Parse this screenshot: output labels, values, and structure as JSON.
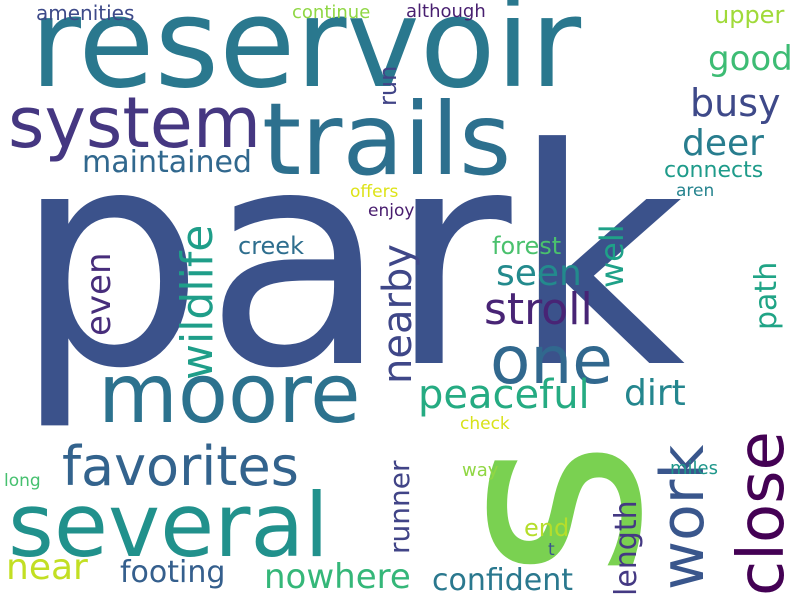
{
  "background": "#ffffff",
  "words": [
    {
      "text": "park",
      "color": "#3b528b",
      "vertical": false
    },
    {
      "text": "reservoir",
      "color": "#2a788e",
      "vertical": false
    },
    {
      "text": "s",
      "color": "#7ad151",
      "vertical": true
    },
    {
      "text": "trails",
      "color": "#2d708e",
      "vertical": false
    },
    {
      "text": "system",
      "color": "#453781",
      "vertical": false
    },
    {
      "text": "several",
      "color": "#21918c",
      "vertical": false
    },
    {
      "text": "moore",
      "color": "#2c728e",
      "vertical": false
    },
    {
      "text": "close",
      "color": "#440154",
      "vertical": true
    },
    {
      "text": "one",
      "color": "#31688e",
      "vertical": false
    },
    {
      "text": "favorites",
      "color": "#33638d",
      "vertical": false
    },
    {
      "text": "work",
      "color": "#39568c",
      "vertical": true
    },
    {
      "text": "wildlife",
      "color": "#1f9e89",
      "vertical": true
    },
    {
      "text": "stroll",
      "color": "#482475",
      "vertical": false
    },
    {
      "text": "peaceful",
      "color": "#25ab82",
      "vertical": false
    },
    {
      "text": "busy",
      "color": "#3e4989",
      "vertical": false
    },
    {
      "text": "deer",
      "color": "#287d8e",
      "vertical": false
    },
    {
      "text": "nowhere",
      "color": "#35b779",
      "vertical": false
    },
    {
      "text": "confident",
      "color": "#2a788e",
      "vertical": false
    },
    {
      "text": "seen",
      "color": "#238a8d",
      "vertical": false
    },
    {
      "text": "dirt",
      "color": "#24868e",
      "vertical": false
    },
    {
      "text": "maintained",
      "color": "#31688e",
      "vertical": false
    },
    {
      "text": "nearby",
      "color": "#3f4788",
      "vertical": true
    },
    {
      "text": "footing",
      "color": "#355f8d",
      "vertical": false
    },
    {
      "text": "near",
      "color": "#c2df23",
      "vertical": false
    },
    {
      "text": "good",
      "color": "#3dbc74",
      "vertical": false
    },
    {
      "text": "even",
      "color": "#472d7b",
      "vertical": true
    },
    {
      "text": "well",
      "color": "#1fa188",
      "vertical": true
    },
    {
      "text": "path",
      "color": "#20a486",
      "vertical": true
    },
    {
      "text": "length",
      "color": "#443983",
      "vertical": true
    },
    {
      "text": "runner",
      "color": "#414487",
      "vertical": true
    },
    {
      "text": "upper",
      "color": "#a0da39",
      "vertical": false
    },
    {
      "text": "forest",
      "color": "#4ac16d",
      "vertical": false
    },
    {
      "text": "connects",
      "color": "#1e9b8a",
      "vertical": false
    },
    {
      "text": "creek",
      "color": "#2e6e8e",
      "vertical": false
    },
    {
      "text": "run",
      "color": "#414487",
      "vertical": true
    },
    {
      "text": "end",
      "color": "#b5de2b",
      "vertical": false
    },
    {
      "text": "amenities",
      "color": "#3e4a89",
      "vertical": false
    },
    {
      "text": "although",
      "color": "#481f70",
      "vertical": false
    },
    {
      "text": "continue",
      "color": "#8fd744",
      "vertical": false
    },
    {
      "text": "offers",
      "color": "#dde318",
      "vertical": false
    },
    {
      "text": "enjoy",
      "color": "#481c6e",
      "vertical": false
    },
    {
      "text": "aren",
      "color": "#25838e",
      "vertical": false
    },
    {
      "text": "check",
      "color": "#d8e219",
      "vertical": false
    },
    {
      "text": "way",
      "color": "#90d743",
      "vertical": false
    },
    {
      "text": "miles",
      "color": "#1f978b",
      "vertical": false
    },
    {
      "text": "long",
      "color": "#46c06f",
      "vertical": false
    },
    {
      "text": "t",
      "color": "#3a548c",
      "vertical": false
    }
  ]
}
